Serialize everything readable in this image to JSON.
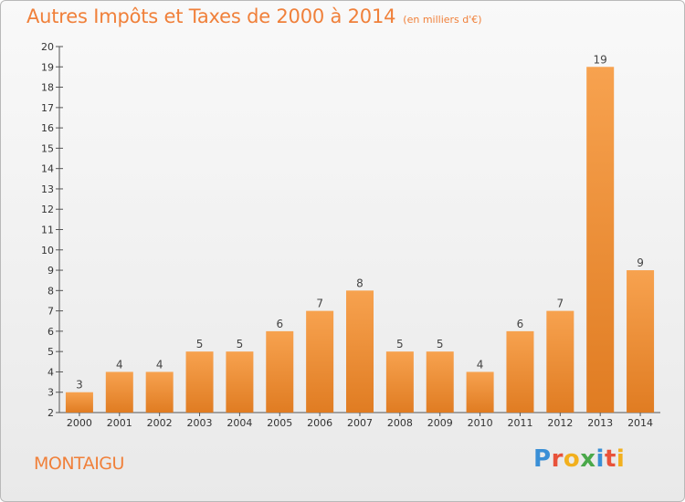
{
  "chart_data": {
    "type": "bar",
    "title": "Autres Impôts et Taxes de 2000 à 2014",
    "unit_label": "(en milliers d'€)",
    "categories": [
      "2000",
      "2001",
      "2002",
      "2003",
      "2004",
      "2005",
      "2006",
      "2007",
      "2008",
      "2009",
      "2010",
      "2011",
      "2012",
      "2013",
      "2014"
    ],
    "values": [
      3,
      4,
      4,
      5,
      5,
      6,
      7,
      8,
      5,
      5,
      4,
      6,
      7,
      19,
      9
    ],
    "ylim": [
      2,
      20
    ],
    "yticks": [
      2,
      3,
      4,
      5,
      6,
      7,
      8,
      9,
      10,
      11,
      12,
      13,
      14,
      15,
      16,
      17,
      18,
      19,
      20
    ],
    "grid": false,
    "bar_color_light": "#f7a24f",
    "bar_color_dark": "#e07c22"
  },
  "commune": "MONTAIGU",
  "logo": {
    "letters": [
      {
        "ch": "P",
        "color": "#3a8fd6"
      },
      {
        "ch": "r",
        "color": "#e8523a"
      },
      {
        "ch": "o",
        "color": "#f2b01e"
      },
      {
        "ch": "x",
        "color": "#4aa84a"
      },
      {
        "ch": "i",
        "color": "#3a8fd6"
      },
      {
        "ch": "t",
        "color": "#e8523a"
      },
      {
        "ch": "i",
        "color": "#f2b01e"
      }
    ]
  }
}
